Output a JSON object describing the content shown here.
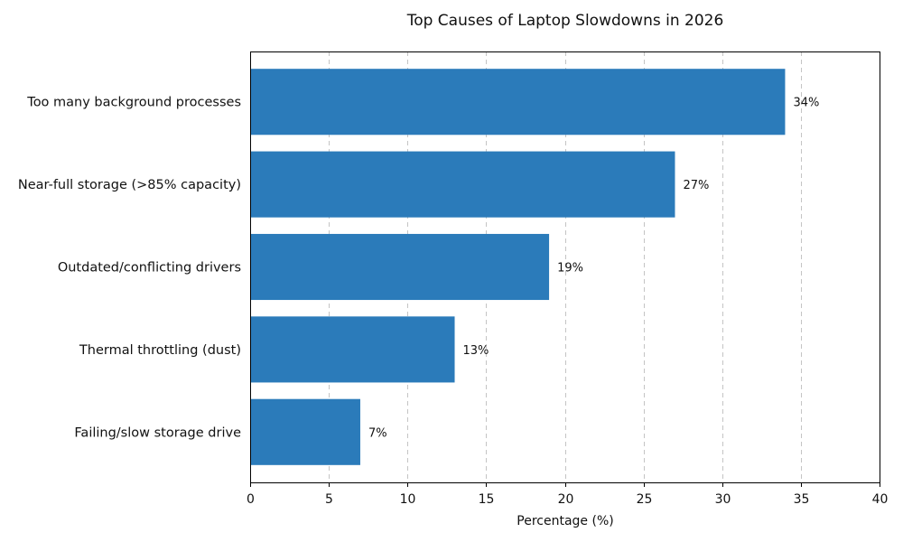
{
  "chart_data": {
    "type": "bar",
    "orientation": "horizontal",
    "title": "Top Causes of Laptop Slowdowns in 2026",
    "xlabel": "Percentage (%)",
    "ylabel": "",
    "xlim": [
      0,
      40
    ],
    "xticks": [
      "0",
      "5",
      "10",
      "15",
      "20",
      "25",
      "30",
      "35",
      "40"
    ],
    "grid": "x-dashed",
    "categories": [
      "Too many background processes",
      "Near-full storage (>85% capacity)",
      "Outdated/conflicting drivers",
      "Thermal throttling (dust)",
      "Failing/slow storage drive"
    ],
    "values": [
      34,
      27,
      19,
      13,
      7
    ],
    "value_labels": [
      "34%",
      "27%",
      "19%",
      "13%",
      "7%"
    ],
    "bar_color": "#2b7bba"
  }
}
